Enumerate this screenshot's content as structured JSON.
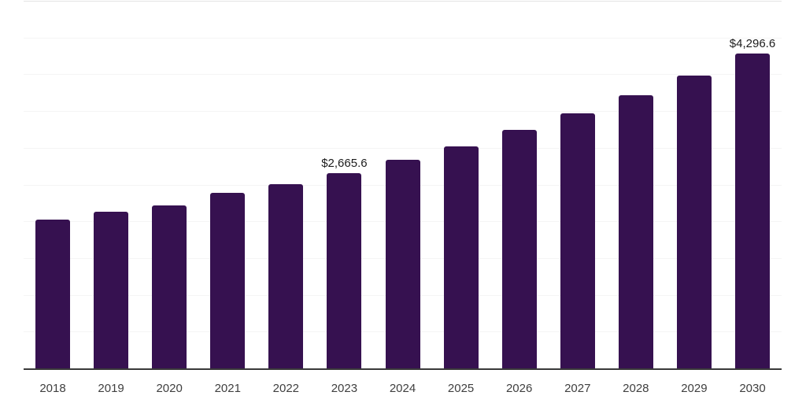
{
  "chart_data": {
    "type": "bar",
    "title": "",
    "xlabel": "",
    "ylabel": "",
    "categories": [
      "2018",
      "2019",
      "2020",
      "2021",
      "2022",
      "2023",
      "2024",
      "2025",
      "2026",
      "2027",
      "2028",
      "2029",
      "2030"
    ],
    "values": [
      2030,
      2145,
      2230,
      2400,
      2520,
      2665.6,
      2850,
      3030,
      3255,
      3485,
      3725,
      3995,
      4296.6
    ],
    "data_labels": [
      null,
      null,
      null,
      null,
      null,
      "$2,665.6",
      null,
      null,
      null,
      null,
      null,
      null,
      "$4,296.6"
    ],
    "ylim": [
      0,
      5000
    ],
    "gridline_step": 500,
    "grid": true,
    "legend": false,
    "y_axis_tick_labels_visible": false
  },
  "theme": {
    "bar_color": "#361150",
    "axis_line_color": "#3a3a3a",
    "gridline_color": "#f5f5f5",
    "top_gridline_color": "#e4e4e4",
    "value_label_color": "#1c1c1c",
    "tick_label_color": "#3f3f3f",
    "background_color": "#ffffff"
  }
}
